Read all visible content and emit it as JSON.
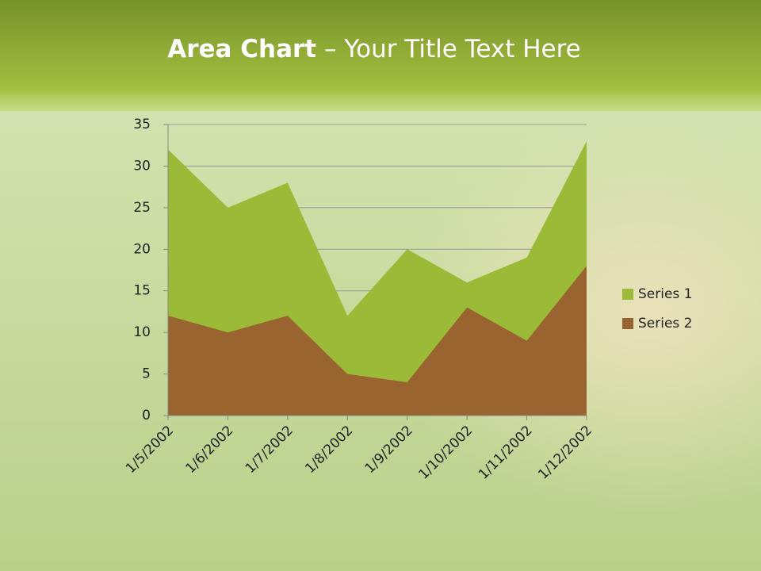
{
  "chart_data": {
    "type": "area",
    "title_bold": "Area Chart",
    "title_rest": "– Your Title Text Here",
    "categories": [
      "1/5/2002",
      "1/6/2002",
      "1/7/2002",
      "1/8/2002",
      "1/9/2002",
      "1/10/2002",
      "1/11/2002",
      "1/12/2002"
    ],
    "series": [
      {
        "name": "Series 1",
        "color": "#9bbb38",
        "values": [
          32,
          25,
          28,
          12,
          20,
          16,
          19,
          33
        ]
      },
      {
        "name": "Series 2",
        "color": "#9a6430",
        "values": [
          12,
          10,
          12,
          5,
          4,
          13,
          9,
          18
        ]
      }
    ],
    "ylim": [
      0,
      35
    ],
    "yticks": [
      0,
      5,
      10,
      15,
      20,
      25,
      30,
      35
    ],
    "grid": true,
    "legend": "right"
  }
}
